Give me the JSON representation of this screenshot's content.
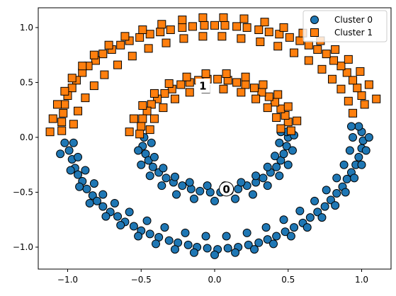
{
  "chart_data": {
    "type": "scatter",
    "title": "",
    "xlabel": "",
    "ylabel": "",
    "xlim": [
      -1.2,
      1.2
    ],
    "ylim": [
      -1.2,
      1.18
    ],
    "xticks": [
      -1.0,
      -0.5,
      0.0,
      0.5,
      1.0
    ],
    "xtick_labels": [
      "−1.0",
      "−0.5",
      "0.0",
      "0.5",
      "1.0"
    ],
    "yticks": [
      -1.0,
      -0.5,
      0.0,
      0.5,
      1.0
    ],
    "ytick_labels": [
      "−1.0",
      "−0.5",
      "0.0",
      "0.5",
      "1.0"
    ],
    "grid": false,
    "legend_position": "top-right",
    "series": [
      {
        "name": "Cluster 0",
        "marker": "circle",
        "color": "#1f77b4",
        "description_of_shape": "lower half of outer ring (radius ~1, angles 180-360 deg) plus lower half of inner ring (radius ~0.5, angles 180-360 deg)",
        "points": [
          [
            -1.02,
            -0.05
          ],
          [
            -0.99,
            -0.12
          ],
          [
            -0.97,
            -0.2
          ],
          [
            -0.95,
            -0.28
          ],
          [
            -0.93,
            -0.34
          ],
          [
            -0.9,
            -0.4
          ],
          [
            -0.87,
            -0.47
          ],
          [
            -0.83,
            -0.53
          ],
          [
            -0.8,
            -0.58
          ],
          [
            -0.76,
            -0.63
          ],
          [
            -0.71,
            -0.68
          ],
          [
            -0.66,
            -0.72
          ],
          [
            -0.61,
            -0.77
          ],
          [
            -0.55,
            -0.81
          ],
          [
            -0.5,
            -0.85
          ],
          [
            -0.44,
            -0.88
          ],
          [
            -0.38,
            -0.91
          ],
          [
            -0.31,
            -0.94
          ],
          [
            -0.25,
            -0.96
          ],
          [
            -0.18,
            -0.98
          ],
          [
            -0.12,
            -1.0
          ],
          [
            -0.05,
            -1.01
          ],
          [
            0.02,
            -1.02
          ],
          [
            0.09,
            -1.01
          ],
          [
            0.16,
            -1.0
          ],
          [
            0.23,
            -0.98
          ],
          [
            0.3,
            -0.96
          ],
          [
            0.36,
            -0.93
          ],
          [
            0.42,
            -0.9
          ],
          [
            0.48,
            -0.86
          ],
          [
            0.54,
            -0.82
          ],
          [
            0.6,
            -0.78
          ],
          [
            0.65,
            -0.73
          ],
          [
            0.7,
            -0.68
          ],
          [
            0.75,
            -0.63
          ],
          [
            0.79,
            -0.57
          ],
          [
            0.83,
            -0.51
          ],
          [
            0.87,
            -0.45
          ],
          [
            0.9,
            -0.38
          ],
          [
            0.93,
            -0.32
          ],
          [
            0.96,
            -0.25
          ],
          [
            0.98,
            -0.18
          ],
          [
            1.0,
            -0.1
          ],
          [
            1.01,
            -0.03
          ],
          [
            1.0,
            0.05
          ],
          [
            0.98,
            0.1
          ],
          [
            -1.05,
            -0.15
          ],
          [
            -0.98,
            -0.3
          ],
          [
            -0.92,
            -0.45
          ],
          [
            -0.85,
            -0.6
          ],
          [
            -0.74,
            -0.72
          ],
          [
            -0.64,
            -0.8
          ],
          [
            -0.52,
            -0.9
          ],
          [
            -0.4,
            -0.97
          ],
          [
            -0.27,
            -1.02
          ],
          [
            -0.14,
            -1.05
          ],
          [
            0.0,
            -1.07
          ],
          [
            0.14,
            -1.05
          ],
          [
            0.27,
            -1.02
          ],
          [
            0.4,
            -0.97
          ],
          [
            0.52,
            -0.9
          ],
          [
            0.63,
            -0.82
          ],
          [
            0.73,
            -0.73
          ],
          [
            0.82,
            -0.62
          ],
          [
            0.89,
            -0.5
          ],
          [
            0.95,
            -0.37
          ],
          [
            1.0,
            -0.25
          ],
          [
            1.03,
            -0.12
          ],
          [
            1.05,
            0.0
          ],
          [
            -0.96,
            -0.05
          ],
          [
            -0.93,
            -0.18
          ],
          [
            -0.88,
            -0.3
          ],
          [
            -0.82,
            -0.42
          ],
          [
            -0.76,
            -0.52
          ],
          [
            -0.68,
            -0.6
          ],
          [
            -0.58,
            -0.68
          ],
          [
            -0.46,
            -0.76
          ],
          [
            -0.34,
            -0.82
          ],
          [
            -0.2,
            -0.87
          ],
          [
            -0.06,
            -0.9
          ],
          [
            0.08,
            -0.9
          ],
          [
            0.22,
            -0.87
          ],
          [
            0.35,
            -0.82
          ],
          [
            0.47,
            -0.75
          ],
          [
            0.58,
            -0.67
          ],
          [
            0.68,
            -0.58
          ],
          [
            0.76,
            -0.48
          ],
          [
            0.83,
            -0.37
          ],
          [
            0.88,
            -0.25
          ],
          [
            0.92,
            -0.12
          ],
          [
            0.94,
            0.0
          ],
          [
            0.93,
            0.1
          ],
          [
            -0.48,
            0.0
          ],
          [
            -0.49,
            -0.08
          ],
          [
            -0.47,
            -0.15
          ],
          [
            -0.45,
            -0.21
          ],
          [
            -0.42,
            -0.27
          ],
          [
            -0.38,
            -0.32
          ],
          [
            -0.33,
            -0.37
          ],
          [
            -0.28,
            -0.41
          ],
          [
            -0.22,
            -0.44
          ],
          [
            -0.16,
            -0.47
          ],
          [
            -0.1,
            -0.49
          ],
          [
            -0.03,
            -0.5
          ],
          [
            0.04,
            -0.5
          ],
          [
            0.1,
            -0.49
          ],
          [
            0.16,
            -0.47
          ],
          [
            0.22,
            -0.44
          ],
          [
            0.28,
            -0.41
          ],
          [
            0.33,
            -0.37
          ],
          [
            0.38,
            -0.32
          ],
          [
            0.42,
            -0.27
          ],
          [
            0.45,
            -0.21
          ],
          [
            0.47,
            -0.15
          ],
          [
            0.49,
            -0.08
          ],
          [
            0.5,
            0.0
          ],
          [
            0.49,
            0.05
          ],
          [
            -0.52,
            -0.12
          ],
          [
            -0.5,
            -0.25
          ],
          [
            -0.44,
            -0.35
          ],
          [
            -0.36,
            -0.44
          ],
          [
            -0.26,
            -0.52
          ],
          [
            -0.14,
            -0.56
          ],
          [
            0.0,
            -0.58
          ],
          [
            0.14,
            -0.56
          ],
          [
            0.26,
            -0.52
          ],
          [
            0.36,
            -0.44
          ],
          [
            0.44,
            -0.35
          ],
          [
            0.5,
            -0.25
          ],
          [
            0.53,
            -0.12
          ],
          [
            0.54,
            0.02
          ],
          [
            -0.43,
            -0.05
          ],
          [
            -0.41,
            -0.18
          ],
          [
            -0.35,
            -0.28
          ],
          [
            -0.27,
            -0.36
          ],
          [
            -0.17,
            -0.41
          ],
          [
            -0.05,
            -0.44
          ],
          [
            0.07,
            -0.44
          ],
          [
            0.18,
            -0.41
          ],
          [
            0.28,
            -0.35
          ],
          [
            0.36,
            -0.27
          ],
          [
            0.41,
            -0.17
          ],
          [
            0.44,
            -0.05
          ],
          [
            0.45,
            0.05
          ]
        ]
      },
      {
        "name": "Cluster 1",
        "marker": "square",
        "color": "#ff7f0e",
        "description_of_shape": "upper half of outer ring (radius ~1, angles 0-180 deg) plus upper half of inner ring (radius ~0.5, angles 0-180 deg)",
        "points": [
          [
            1.02,
            0.3
          ],
          [
            1.0,
            0.38
          ],
          [
            0.97,
            0.45
          ],
          [
            0.94,
            0.52
          ],
          [
            0.9,
            0.59
          ],
          [
            0.86,
            0.65
          ],
          [
            0.81,
            0.7
          ],
          [
            0.76,
            0.76
          ],
          [
            0.7,
            0.8
          ],
          [
            0.64,
            0.84
          ],
          [
            0.58,
            0.88
          ],
          [
            0.51,
            0.91
          ],
          [
            0.44,
            0.94
          ],
          [
            0.37,
            0.96
          ],
          [
            0.3,
            0.98
          ],
          [
            0.22,
            1.0
          ],
          [
            0.15,
            1.01
          ],
          [
            0.07,
            1.02
          ],
          [
            0.0,
            1.02
          ],
          [
            -0.07,
            1.02
          ],
          [
            -0.15,
            1.01
          ],
          [
            -0.22,
            1.0
          ],
          [
            -0.3,
            0.98
          ],
          [
            -0.37,
            0.96
          ],
          [
            -0.44,
            0.94
          ],
          [
            -0.51,
            0.91
          ],
          [
            -0.58,
            0.88
          ],
          [
            -0.64,
            0.84
          ],
          [
            -0.7,
            0.8
          ],
          [
            -0.76,
            0.76
          ],
          [
            -0.81,
            0.7
          ],
          [
            -0.86,
            0.65
          ],
          [
            -0.9,
            0.59
          ],
          [
            -0.94,
            0.52
          ],
          [
            -0.97,
            0.45
          ],
          [
            -1.0,
            0.38
          ],
          [
            -1.02,
            0.3
          ],
          [
            -1.03,
            0.22
          ],
          [
            -1.04,
            0.14
          ],
          [
            -1.04,
            0.06
          ],
          [
            1.1,
            0.35
          ],
          [
            1.05,
            0.48
          ],
          [
            0.99,
            0.6
          ],
          [
            0.91,
            0.71
          ],
          [
            0.82,
            0.8
          ],
          [
            0.72,
            0.88
          ],
          [
            0.6,
            0.95
          ],
          [
            0.47,
            1.0
          ],
          [
            0.34,
            1.05
          ],
          [
            0.2,
            1.08
          ],
          [
            0.06,
            1.09
          ],
          [
            -0.08,
            1.09
          ],
          [
            -0.22,
            1.07
          ],
          [
            -0.36,
            1.03
          ],
          [
            -0.49,
            0.98
          ],
          [
            -0.61,
            0.92
          ],
          [
            -0.72,
            0.84
          ],
          [
            -0.82,
            0.75
          ],
          [
            -0.9,
            0.65
          ],
          [
            -0.97,
            0.54
          ],
          [
            -1.02,
            0.42
          ],
          [
            -1.07,
            0.3
          ],
          [
            -1.1,
            0.17
          ],
          [
            -1.12,
            0.05
          ],
          [
            0.94,
            0.22
          ],
          [
            0.91,
            0.33
          ],
          [
            0.86,
            0.44
          ],
          [
            0.8,
            0.53
          ],
          [
            0.73,
            0.62
          ],
          [
            0.64,
            0.7
          ],
          [
            0.54,
            0.77
          ],
          [
            0.43,
            0.83
          ],
          [
            0.31,
            0.87
          ],
          [
            0.18,
            0.9
          ],
          [
            0.05,
            0.92
          ],
          [
            -0.08,
            0.92
          ],
          [
            -0.21,
            0.9
          ],
          [
            -0.33,
            0.86
          ],
          [
            -0.45,
            0.81
          ],
          [
            -0.56,
            0.74
          ],
          [
            -0.66,
            0.66
          ],
          [
            -0.75,
            0.57
          ],
          [
            -0.82,
            0.47
          ],
          [
            -0.88,
            0.36
          ],
          [
            -0.93,
            0.24
          ],
          [
            -0.96,
            0.12
          ],
          [
            0.52,
            0.06
          ],
          [
            0.5,
            0.14
          ],
          [
            0.48,
            0.2
          ],
          [
            0.45,
            0.26
          ],
          [
            0.41,
            0.32
          ],
          [
            0.37,
            0.37
          ],
          [
            0.32,
            0.41
          ],
          [
            0.27,
            0.45
          ],
          [
            0.21,
            0.48
          ],
          [
            0.15,
            0.5
          ],
          [
            0.09,
            0.52
          ],
          [
            0.02,
            0.53
          ],
          [
            -0.05,
            0.53
          ],
          [
            -0.11,
            0.52
          ],
          [
            -0.17,
            0.5
          ],
          [
            -0.23,
            0.48
          ],
          [
            -0.29,
            0.44
          ],
          [
            -0.34,
            0.4
          ],
          [
            -0.39,
            0.35
          ],
          [
            -0.43,
            0.3
          ],
          [
            -0.46,
            0.24
          ],
          [
            -0.49,
            0.17
          ],
          [
            -0.5,
            0.1
          ],
          [
            -0.51,
            0.03
          ],
          [
            0.56,
            0.15
          ],
          [
            0.5,
            0.28
          ],
          [
            0.43,
            0.39
          ],
          [
            0.33,
            0.48
          ],
          [
            0.21,
            0.55
          ],
          [
            0.08,
            0.58
          ],
          [
            -0.06,
            0.58
          ],
          [
            -0.19,
            0.55
          ],
          [
            -0.31,
            0.49
          ],
          [
            -0.41,
            0.4
          ],
          [
            -0.49,
            0.29
          ],
          [
            -0.55,
            0.17
          ],
          [
            -0.58,
            0.05
          ],
          [
            0.45,
            0.08
          ],
          [
            0.42,
            0.18
          ],
          [
            0.36,
            0.27
          ],
          [
            0.28,
            0.35
          ],
          [
            0.18,
            0.41
          ],
          [
            0.06,
            0.44
          ],
          [
            -0.06,
            0.44
          ],
          [
            -0.17,
            0.41
          ],
          [
            -0.27,
            0.35
          ],
          [
            -0.35,
            0.27
          ],
          [
            -0.41,
            0.17
          ],
          [
            -0.44,
            0.07
          ]
        ]
      }
    ],
    "centroids": [
      {
        "label": "0",
        "x": 0.08,
        "y": -0.47
      },
      {
        "label": "1",
        "x": -0.08,
        "y": 0.47
      }
    ]
  }
}
